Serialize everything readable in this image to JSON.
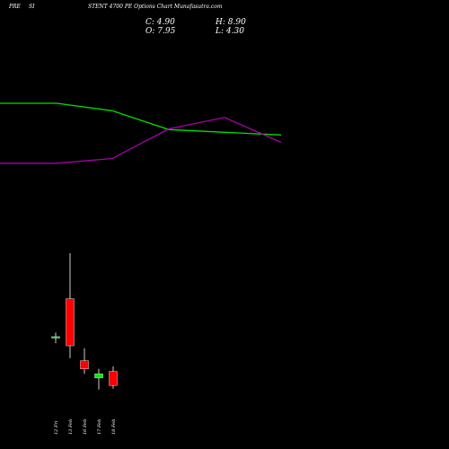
{
  "header": {
    "symbol": "PRE",
    "symbol2": "SI",
    "title": "STENT 4700 PE Options Chart Munafasutra.com"
  },
  "ohlc": {
    "c_label": "C:",
    "c_value": "4.90",
    "h_label": "H:",
    "h_value": "8.90",
    "o_label": "O:",
    "o_value": "7.95",
    "l_label": "L:",
    "l_value": "4.30"
  },
  "chart_data": {
    "type": "candlestick",
    "categories": [
      "12 Fri",
      "13 Feb",
      "16 Feb",
      "17 Feb",
      "18 Feb"
    ],
    "candles": [
      {
        "open": 7.3,
        "high": 7.9,
        "low": 6.6,
        "close": 7.4
      },
      {
        "open": 12.0,
        "high": 17.5,
        "low": 4.8,
        "close": 6.3
      },
      {
        "open": 4.5,
        "high": 6.0,
        "low": 2.9,
        "close": 3.5
      },
      {
        "open": 2.4,
        "high": 3.5,
        "low": 1.0,
        "close": 2.9
      },
      {
        "open": 3.2,
        "high": 3.8,
        "low": 1.1,
        "close": 1.5
      }
    ],
    "overlay_series": [
      {
        "color": "#00dd00",
        "values": [
          0.9,
          0.9,
          0.845,
          0.705,
          0.685,
          0.665
        ]
      },
      {
        "color": "#aa00aa",
        "values": [
          0.455,
          0.455,
          0.49,
          0.71,
          0.795,
          0.61
        ]
      }
    ],
    "ylim": [
      0,
      20
    ],
    "colors": {
      "up": "#00ee00",
      "down": "#ff0000",
      "wick": "#ffffff"
    }
  }
}
